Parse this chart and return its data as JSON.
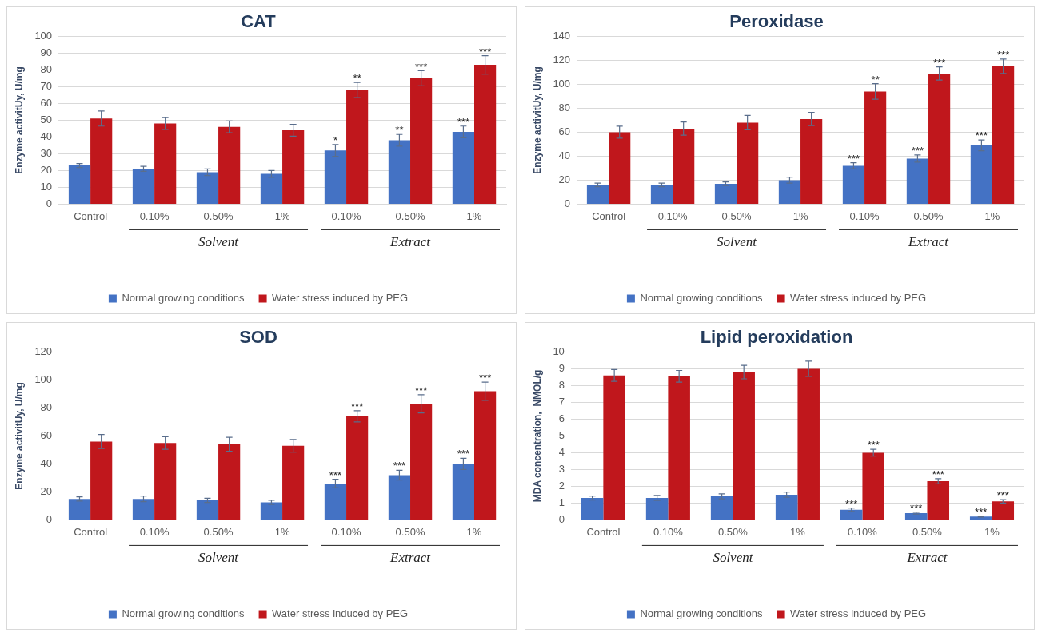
{
  "chart_data": [
    {
      "type": "bar",
      "title": "CAT",
      "ylabel": "Enzyme activitUy, U/mg",
      "categories": [
        "Control",
        "0.10%",
        "0.50%",
        "1%",
        "0.10%",
        "0.50%",
        "1%"
      ],
      "ylim": [
        0,
        100
      ],
      "yticks": [
        0,
        10,
        20,
        30,
        40,
        50,
        60,
        70,
        80,
        90,
        100
      ],
      "grid": "y",
      "legend": "bottom",
      "annotations": [
        "Solvent",
        "Extract"
      ],
      "series": [
        {
          "name": "Normal growing conditions",
          "color": "#4472c4",
          "values": [
            23,
            21,
            19,
            18,
            32,
            38,
            43
          ],
          "errors": [
            1.2,
            1.5,
            2,
            2,
            3.5,
            3.5,
            3.5
          ],
          "value_labels": [
            null,
            null,
            null,
            null,
            "*",
            "**",
            "***"
          ]
        },
        {
          "name": "Water stress induced by PEG",
          "color": "#c0171c",
          "values": [
            51,
            48,
            46,
            44,
            68,
            75,
            83
          ],
          "errors": [
            4.5,
            3.5,
            3.5,
            3.5,
            4.5,
            4.5,
            5.5
          ],
          "value_labels": [
            null,
            null,
            null,
            null,
            "**",
            "***",
            "***"
          ]
        }
      ]
    },
    {
      "type": "bar",
      "title": "Peroxidase",
      "ylabel": "Enzyme activitUy, U/mg",
      "categories": [
        "Control",
        "0.10%",
        "0.50%",
        "1%",
        "0.10%",
        "0.50%",
        "1%"
      ],
      "ylim": [
        0,
        140
      ],
      "yticks": [
        0,
        20,
        40,
        60,
        80,
        100,
        120,
        140
      ],
      "grid": "y",
      "legend": "bottom",
      "annotations": [
        "Solvent",
        "Extract"
      ],
      "series": [
        {
          "name": "Normal growing conditions",
          "color": "#4472c4",
          "values": [
            16,
            16,
            17,
            20,
            32,
            38,
            49
          ],
          "errors": [
            1.5,
            1.5,
            1.5,
            2.5,
            2.5,
            3,
            4.5
          ],
          "value_labels": [
            null,
            null,
            null,
            null,
            "***",
            "***",
            "***"
          ]
        },
        {
          "name": "Water stress induced by PEG",
          "color": "#c0171c",
          "values": [
            60,
            63,
            68,
            71,
            94,
            109,
            115
          ],
          "errors": [
            5,
            5.5,
            6,
            5.5,
            6.5,
            5.5,
            6
          ],
          "value_labels": [
            null,
            null,
            null,
            null,
            "**",
            "***",
            "***"
          ]
        }
      ]
    },
    {
      "type": "bar",
      "title": "SOD",
      "ylabel": "Enzyme activitUy, U/mg",
      "categories": [
        "Control",
        "0.10%",
        "0.50%",
        "1%",
        "0.10%",
        "0.50%",
        "1%"
      ],
      "ylim": [
        0,
        120
      ],
      "yticks": [
        0,
        20,
        40,
        60,
        80,
        100,
        120
      ],
      "grid": "y",
      "legend": "bottom",
      "annotations": [
        "Solvent",
        "Extract"
      ],
      "series": [
        {
          "name": "Normal growing conditions",
          "color": "#4472c4",
          "values": [
            15,
            15,
            14,
            12.5,
            26,
            32,
            40
          ],
          "errors": [
            1.5,
            2,
            1.5,
            1.5,
            3,
            3.5,
            4
          ],
          "value_labels": [
            null,
            null,
            null,
            null,
            "***",
            "***",
            "***"
          ]
        },
        {
          "name": "Water stress induced by PEG",
          "color": "#c0171c",
          "values": [
            56,
            55,
            54,
            53,
            74,
            83,
            92
          ],
          "errors": [
            5,
            4.5,
            5,
            4.5,
            4,
            6.5,
            6.5
          ],
          "value_labels": [
            null,
            null,
            null,
            null,
            "***",
            "***",
            "***"
          ]
        }
      ]
    },
    {
      "type": "bar",
      "title": "Lipid peroxidation",
      "ylabel": "MDA concentration,  NMOL/g",
      "categories": [
        "Control",
        "0.10%",
        "0.50%",
        "1%",
        "0.10%",
        "0.50%",
        "1%"
      ],
      "ylim": [
        0,
        10
      ],
      "yticks": [
        0,
        1,
        2,
        3,
        4,
        5,
        6,
        7,
        8,
        9,
        10
      ],
      "grid": "y",
      "legend": "bottom",
      "annotations": [
        "Solvent",
        "Extract"
      ],
      "series": [
        {
          "name": "Normal growing conditions",
          "color": "#4472c4",
          "values": [
            1.3,
            1.3,
            1.4,
            1.5,
            0.6,
            0.4,
            0.2
          ],
          "errors": [
            0.12,
            0.15,
            0.15,
            0.15,
            0.1,
            0.05,
            0.03
          ],
          "value_labels": [
            null,
            null,
            null,
            null,
            "***",
            "***",
            "***"
          ]
        },
        {
          "name": "Water stress induced by PEG",
          "color": "#c0171c",
          "values": [
            8.6,
            8.55,
            8.8,
            9.0,
            4.0,
            2.3,
            1.1
          ],
          "errors": [
            0.35,
            0.35,
            0.4,
            0.45,
            0.2,
            0.15,
            0.1
          ],
          "value_labels": [
            null,
            null,
            null,
            null,
            "***",
            "***",
            "***"
          ]
        }
      ]
    }
  ]
}
